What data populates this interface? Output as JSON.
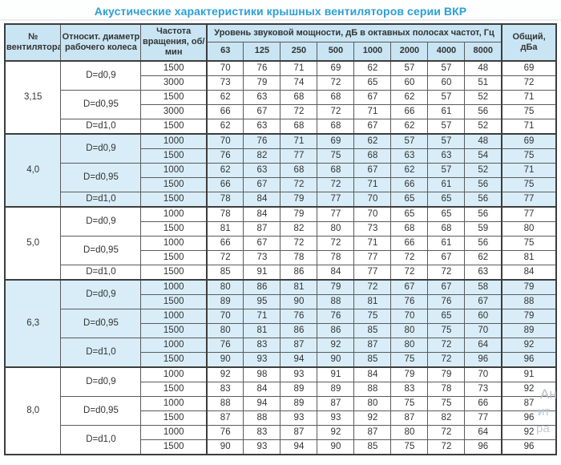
{
  "title": "Акустические характеристики крышных вентиляторов серии ВКР",
  "colors": {
    "title_blue": "#2d9fd4",
    "header_bg": "#c9e5f3",
    "band_bg": "#d8edf8",
    "border_dark": "#3d3d3d",
    "border_inner": "#5b5b5b",
    "text": "#333333"
  },
  "header": {
    "col_fan": "№ вентилятора",
    "col_diameter": "Относит. диаметр рабочего колеса",
    "col_speed": "Частота вращения, об/мин",
    "col_levels": "Уровень звуковой мощности, дБ в октавных полосах частот, Гц",
    "col_total": "Общий, дБа",
    "frequencies": [
      "63",
      "125",
      "250",
      "500",
      "1000",
      "2000",
      "4000",
      "8000"
    ]
  },
  "groups": [
    {
      "fan": "3,15",
      "shaded": false,
      "diameters": [
        {
          "label": "D=d0,9",
          "rows": [
            {
              "speed": "1500",
              "levels": [
                70,
                76,
                71,
                69,
                62,
                57,
                57,
                48
              ],
              "total": 69
            },
            {
              "speed": "3000",
              "levels": [
                73,
                79,
                74,
                72,
                65,
                60,
                60,
                51
              ],
              "total": 72
            }
          ]
        },
        {
          "label": "D=d0,95",
          "rows": [
            {
              "speed": "1500",
              "levels": [
                62,
                63,
                68,
                68,
                67,
                62,
                57,
                52
              ],
              "total": 71
            },
            {
              "speed": "3000",
              "levels": [
                66,
                67,
                72,
                72,
                71,
                66,
                61,
                56
              ],
              "total": 75
            }
          ]
        },
        {
          "label": "D=d1,0",
          "rows": [
            {
              "speed": "1500",
              "levels": [
                62,
                63,
                68,
                68,
                67,
                62,
                57,
                52
              ],
              "total": 71
            }
          ]
        }
      ]
    },
    {
      "fan": "4,0",
      "shaded": true,
      "diameters": [
        {
          "label": "D=d0,9",
          "rows": [
            {
              "speed": "1000",
              "levels": [
                70,
                76,
                71,
                69,
                62,
                57,
                57,
                48
              ],
              "total": 69
            },
            {
              "speed": "1500",
              "levels": [
                76,
                82,
                77,
                75,
                68,
                63,
                63,
                54
              ],
              "total": 75
            }
          ]
        },
        {
          "label": "D=d0,95",
          "rows": [
            {
              "speed": "1000",
              "levels": [
                62,
                63,
                68,
                68,
                67,
                62,
                57,
                52
              ],
              "total": 71
            },
            {
              "speed": "1500",
              "levels": [
                66,
                67,
                72,
                72,
                71,
                66,
                61,
                56
              ],
              "total": 75
            }
          ]
        },
        {
          "label": "D=d1,0",
          "rows": [
            {
              "speed": "1500",
              "levels": [
                78,
                84,
                79,
                77,
                70,
                65,
                65,
                56
              ],
              "total": 77
            }
          ]
        }
      ]
    },
    {
      "fan": "5,0",
      "shaded": false,
      "diameters": [
        {
          "label": "D=d0,9",
          "rows": [
            {
              "speed": "1000",
              "levels": [
                78,
                84,
                79,
                77,
                70,
                65,
                65,
                56
              ],
              "total": 77
            },
            {
              "speed": "1500",
              "levels": [
                81,
                87,
                82,
                80,
                73,
                68,
                68,
                59
              ],
              "total": 80
            }
          ]
        },
        {
          "label": "D=d0,95",
          "rows": [
            {
              "speed": "1000",
              "levels": [
                66,
                67,
                72,
                72,
                71,
                66,
                61,
                56
              ],
              "total": 75
            },
            {
              "speed": "1500",
              "levels": [
                72,
                73,
                78,
                78,
                77,
                72,
                67,
                62
              ],
              "total": 81
            }
          ]
        },
        {
          "label": "D=d1,0",
          "rows": [
            {
              "speed": "1500",
              "levels": [
                85,
                91,
                86,
                84,
                77,
                72,
                72,
                63
              ],
              "total": 84
            }
          ]
        }
      ]
    },
    {
      "fan": "6,3",
      "shaded": true,
      "diameters": [
        {
          "label": "D=d0,9",
          "rows": [
            {
              "speed": "1000",
              "levels": [
                80,
                86,
                81,
                79,
                72,
                67,
                67,
                58
              ],
              "total": 79
            },
            {
              "speed": "1500",
              "levels": [
                89,
                95,
                90,
                88,
                81,
                76,
                76,
                67
              ],
              "total": 88
            }
          ]
        },
        {
          "label": "D=d0,95",
          "rows": [
            {
              "speed": "1000",
              "levels": [
                70,
                71,
                76,
                76,
                75,
                70,
                65,
                60
              ],
              "total": 79
            },
            {
              "speed": "1500",
              "levels": [
                80,
                81,
                86,
                86,
                85,
                80,
                75,
                70
              ],
              "total": 89
            }
          ]
        },
        {
          "label": "D=d1,0",
          "rows": [
            {
              "speed": "1000",
              "levels": [
                76,
                83,
                87,
                92,
                87,
                80,
                72,
                64
              ],
              "total": 92
            },
            {
              "speed": "1500",
              "levels": [
                90,
                93,
                94,
                90,
                85,
                75,
                72,
                96
              ],
              "total": 96
            }
          ]
        }
      ]
    },
    {
      "fan": "8,0",
      "shaded": false,
      "diameters": [
        {
          "label": "D=d0,9",
          "rows": [
            {
              "speed": "1000",
              "levels": [
                92,
                98,
                93,
                91,
                84,
                79,
                79,
                70
              ],
              "total": 91
            },
            {
              "speed": "1500",
              "levels": [
                83,
                84,
                89,
                89,
                88,
                83,
                78,
                73
              ],
              "total": 92
            }
          ]
        },
        {
          "label": "D=d0,95",
          "rows": [
            {
              "speed": "1000",
              "levels": [
                88,
                94,
                89,
                87,
                80,
                75,
                75,
                66
              ],
              "total": 87
            },
            {
              "speed": "1500",
              "levels": [
                87,
                88,
                93,
                93,
                92,
                87,
                82,
                77
              ],
              "total": 96
            }
          ]
        },
        {
          "label": "D=d1,0",
          "rows": [
            {
              "speed": "1000",
              "levels": [
                76,
                83,
                87,
                92,
                87,
                80,
                72,
                64
              ],
              "total": 92
            },
            {
              "speed": "1500",
              "levels": [
                90,
                93,
                94,
                90,
                85,
                75,
                72,
                96
              ],
              "total": 96
            }
          ]
        }
      ]
    }
  ],
  "watermark": {
    "line1": "Ан",
    "line2": "ит",
    "line3": "ра"
  }
}
